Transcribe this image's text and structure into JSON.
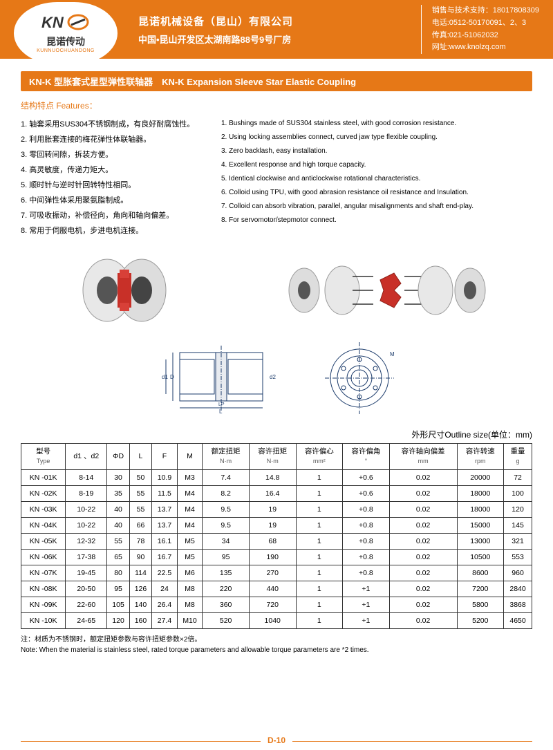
{
  "header": {
    "logo": {
      "brand": "KNO",
      "cn": "昆诺传动",
      "py": "KUNNUOCHUANDONG"
    },
    "company_cn": "昆诺机械设备（昆山）有限公司",
    "address": "中国•昆山开发区太湖南路88号9号厂房",
    "contact": {
      "l1": "销售与技术支持：18017808309",
      "l2": "电话:0512-50170091、2、3",
      "l3": "传真:021-51062032",
      "l4": "网址:www.knolzq.com"
    }
  },
  "title": "KN-K 型胀套式星型弹性联轴器　KN-K Expansion Sleeve Star Elastic Coupling",
  "features_label": "结构特点 Features：",
  "features_cn": [
    "1. 轴套采用SUS304不锈钢制成，有良好耐腐蚀性。",
    "2. 利用胀套连接的梅花弹性体联轴器。",
    "3. 零回转间隙，拆装方便。",
    "4. 高灵敏度，传递力矩大。",
    "5. 顺时针与逆时针回转特性相同。",
    "6. 中间弹性体采用聚氨脂制成。",
    "7. 可吸收振动，补偿径向，角向和轴向偏差。",
    "8. 常用于伺服电机，步进电机连接。"
  ],
  "features_en": [
    "1. Bushings made of SUS304 stainless steel, with good corrosion resistance.",
    "2. Using locking assemblies connect, curved jaw type flexible coupling.",
    "3. Zero backlash, easy installation.",
    "4. Excellent response and high torque capacity.",
    "5. Identical clockwise and anticlockwise rotational characteristics.",
    "6. Colloid using TPU, with good abrasion resistance oil resistance and Insulation.",
    "7. Colloid can absorb vibration, parallel, angular misalignments and shaft end-play.",
    "8. For servomotor/stepmotor connect."
  ],
  "outline_label": "外形尺寸Outline size(单位：mm)",
  "table": {
    "headers": [
      {
        "l1": "型号",
        "l2": "Type"
      },
      {
        "l1": "d1 、d2",
        "l2": ""
      },
      {
        "l1": "ΦD",
        "l2": ""
      },
      {
        "l1": "L",
        "l2": ""
      },
      {
        "l1": "F",
        "l2": ""
      },
      {
        "l1": "M",
        "l2": ""
      },
      {
        "l1": "额定扭矩",
        "l2": "N·m"
      },
      {
        "l1": "容许扭矩",
        "l2": "N·m"
      },
      {
        "l1": "容许偏心",
        "l2": "mm²"
      },
      {
        "l1": "容许偏角",
        "l2": "°"
      },
      {
        "l1": "容许轴向偏差",
        "l2": "mm"
      },
      {
        "l1": "容许转速",
        "l2": "rpm"
      },
      {
        "l1": "重量",
        "l2": "g"
      }
    ],
    "rows": [
      [
        "KN -01K",
        "8-14",
        "30",
        "50",
        "10.9",
        "M3",
        "7.4",
        "14.8",
        "1",
        "+0.6",
        "0.02",
        "20000",
        "72"
      ],
      [
        "KN -02K",
        "8-19",
        "35",
        "55",
        "11.5",
        "M4",
        "8.2",
        "16.4",
        "1",
        "+0.6",
        "0.02",
        "18000",
        "100"
      ],
      [
        "KN -03K",
        "10-22",
        "40",
        "55",
        "13.7",
        "M4",
        "9.5",
        "19",
        "1",
        "+0.8",
        "0.02",
        "18000",
        "120"
      ],
      [
        "KN -04K",
        "10-22",
        "40",
        "66",
        "13.7",
        "M4",
        "9.5",
        "19",
        "1",
        "+0.8",
        "0.02",
        "15000",
        "145"
      ],
      [
        "KN -05K",
        "12-32",
        "55",
        "78",
        "16.1",
        "M5",
        "34",
        "68",
        "1",
        "+0.8",
        "0.02",
        "13000",
        "321"
      ],
      [
        "KN -06K",
        "17-38",
        "65",
        "90",
        "16.7",
        "M5",
        "95",
        "190",
        "1",
        "+0.8",
        "0.02",
        "10500",
        "553"
      ],
      [
        "KN -07K",
        "19-45",
        "80",
        "114",
        "22.5",
        "M6",
        "135",
        "270",
        "1",
        "+0.8",
        "0.02",
        "8600",
        "960"
      ],
      [
        "KN -08K",
        "20-50",
        "95",
        "126",
        "24",
        "M8",
        "220",
        "440",
        "1",
        "+1",
        "0.02",
        "7200",
        "2840"
      ],
      [
        "KN -09K",
        "22-60",
        "105",
        "140",
        "26.4",
        "M8",
        "360",
        "720",
        "1",
        "+1",
        "0.02",
        "5800",
        "3868"
      ],
      [
        "KN -10K",
        "24-65",
        "120",
        "160",
        "27.4",
        "M10",
        "520",
        "1040",
        "1",
        "+1",
        "0.02",
        "5200",
        "4650"
      ]
    ]
  },
  "note_cn": "注：材质为不锈钢时，额定扭矩参数与容许扭矩参数×2倍。",
  "note_en": "Note: When the material is stainless steel, rated torque parameters and allowable torque parameters are *2 times.",
  "page_num": "D-10",
  "colors": {
    "primary": "#e67817",
    "border": "#333",
    "text": "#000"
  }
}
